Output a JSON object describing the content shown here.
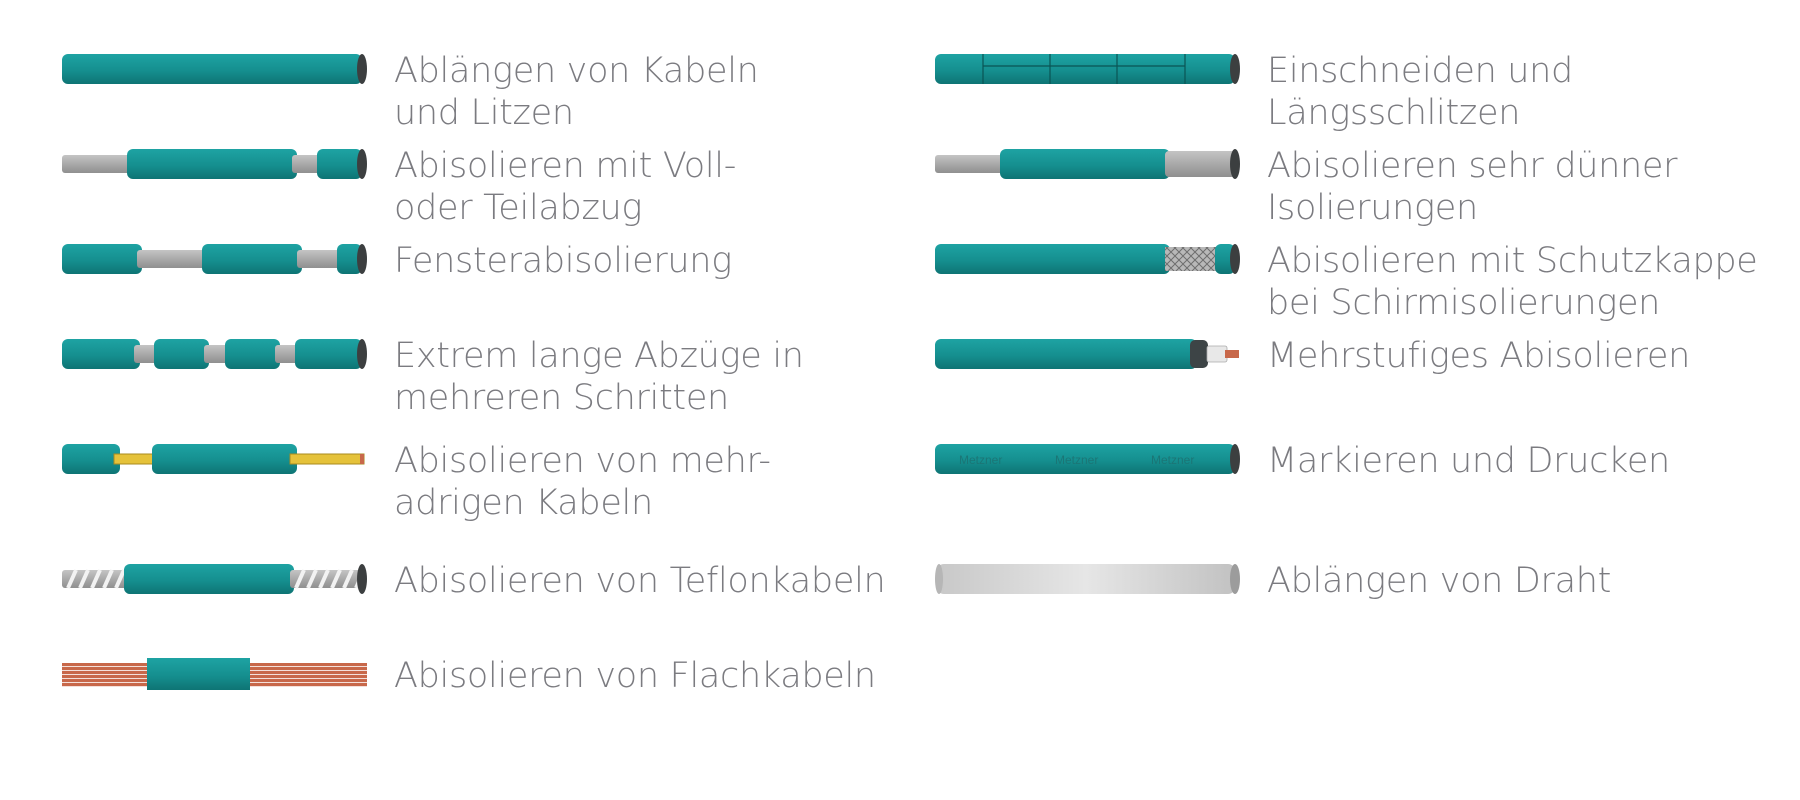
{
  "colors": {
    "teal": "#158f8f",
    "teal_light": "#1ea3a3",
    "teal_dark": "#0e7474",
    "core_gray": "#a9a9a9",
    "cap_dark": "#3c3f40",
    "wire_yellow": "#e5c23a",
    "copper": "#c8684a",
    "label_text": "#7b7b80"
  },
  "items": [
    {
      "id": "cut-cables",
      "icon": "cable-cut-icon",
      "lines": [
        "Ablängen von Kabeln",
        "und Litzen"
      ]
    },
    {
      "id": "strip-full-partial",
      "icon": "cable-strip-full-partial-icon",
      "lines": [
        "Abisolieren mit Voll-",
        "oder Teilabzug"
      ]
    },
    {
      "id": "window-strip",
      "icon": "cable-window-strip-icon",
      "lines": [
        "Fensterabisolierung"
      ]
    },
    {
      "id": "long-strip",
      "icon": "cable-long-strip-icon",
      "lines": [
        "Extrem lange Abzüge in",
        "mehreren Schritten"
      ]
    },
    {
      "id": "multicore",
      "icon": "cable-multicore-icon",
      "lines": [
        "Abisolieren von mehr-",
        "adrigen Kabeln"
      ]
    },
    {
      "id": "teflon",
      "icon": "cable-teflon-icon",
      "lines": [
        "Abisolieren von Teflonkabeln"
      ]
    },
    {
      "id": "flat-cable",
      "icon": "cable-flat-icon",
      "lines": [
        "Abisolieren von Flachkabeln"
      ]
    },
    {
      "id": "slitting",
      "icon": "cable-slit-icon",
      "lines": [
        "Einschneiden und",
        "Längsschlitzen"
      ]
    },
    {
      "id": "thin-insulation",
      "icon": "cable-thin-insulation-icon",
      "lines": [
        "Abisolieren sehr dünner",
        "Isolierungen"
      ]
    },
    {
      "id": "shield",
      "icon": "cable-shield-cap-icon",
      "lines": [
        "Abisolieren mit Schutzkappe",
        "bei Schirmisolierungen"
      ]
    },
    {
      "id": "multistep",
      "icon": "cable-multistep-icon",
      "lines": [
        "Mehrstufiges Abisolieren"
      ]
    },
    {
      "id": "marking",
      "icon": "cable-marking-icon",
      "lines": [
        "Markieren und Drucken"
      ],
      "print_text": "Metzner"
    },
    {
      "id": "wire",
      "icon": "wire-cut-icon",
      "lines": [
        "Ablängen von Draht"
      ]
    }
  ]
}
